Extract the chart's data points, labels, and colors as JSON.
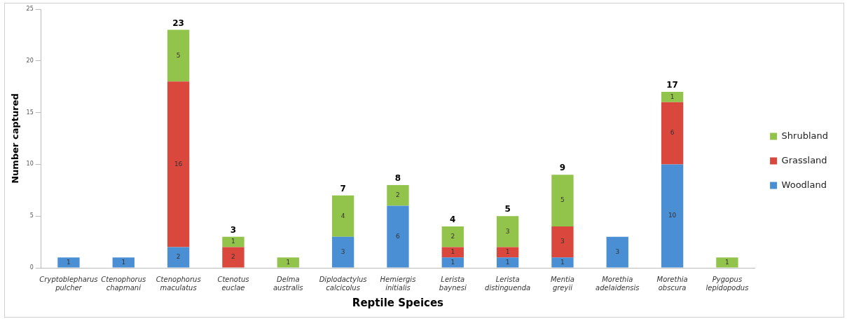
{
  "chart_data": {
    "type": "bar",
    "stacked": true,
    "xlabel": "Reptile Speices",
    "ylabel": "Number captured",
    "categories": [
      "Cryptoblepharus pulcher",
      "Ctenophorus chapmani",
      "Ctenophorus maculatus",
      "Ctenotus euclae",
      "Delma australis",
      "Diplodactylus calcicolus",
      "Hemiergis initialis",
      "Lerista baynesi",
      "Lerista distinguenda",
      "Mentia greyii",
      "Morethia adelaidensis",
      "Morethia obscura",
      "Pygopus lepidopodus"
    ],
    "series": [
      {
        "name": "Woodland",
        "color": "#4a8fd4",
        "values": [
          1,
          1,
          2,
          null,
          null,
          3,
          6,
          1,
          1,
          1,
          3,
          10,
          null
        ]
      },
      {
        "name": "Grassland",
        "color": "#d9473d",
        "values": [
          null,
          null,
          16,
          2,
          null,
          null,
          null,
          1,
          1,
          3,
          null,
          6,
          null
        ]
      },
      {
        "name": "Shrubland",
        "color": "#92c34a",
        "values": [
          null,
          null,
          5,
          1,
          1,
          4,
          2,
          2,
          3,
          5,
          null,
          1,
          1
        ]
      }
    ],
    "totals": [
      null,
      null,
      "23",
      "3",
      null,
      "7",
      "8",
      "4",
      "5",
      "9",
      null,
      "17",
      null
    ],
    "data_labels": true,
    "ylim": [
      0,
      25
    ],
    "yticks": [
      0,
      5,
      10,
      15,
      20,
      25
    ],
    "grid": false,
    "legend": "right"
  }
}
